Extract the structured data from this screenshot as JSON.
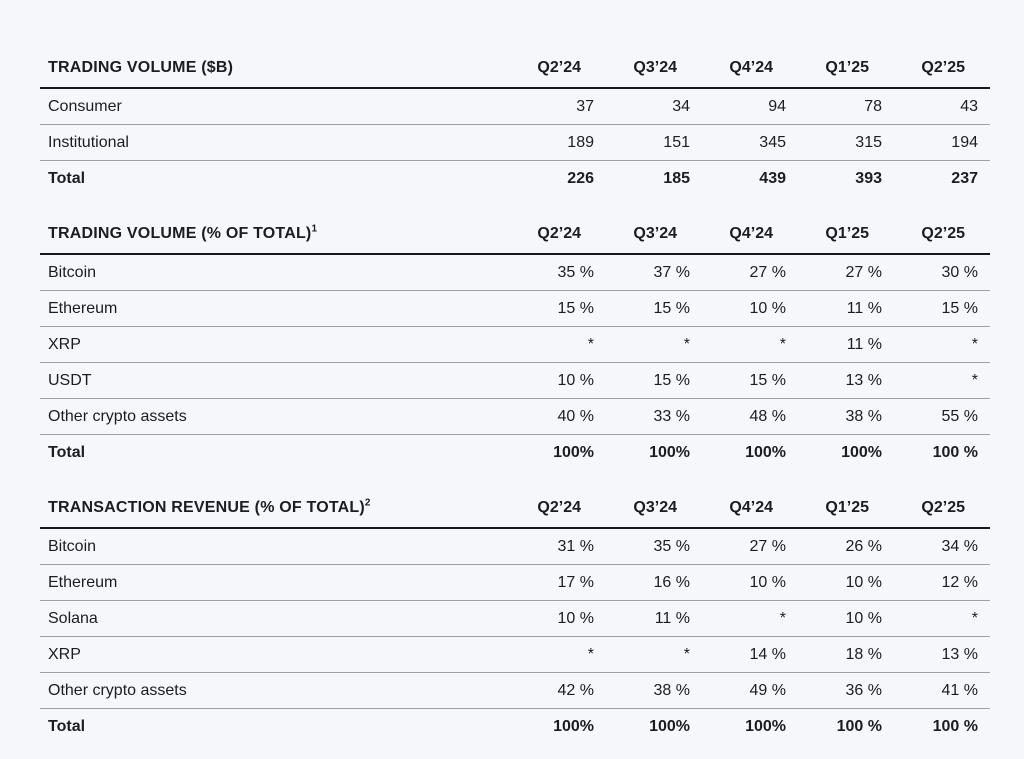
{
  "page": {
    "background_color": "#f5f7fa",
    "text_color": "#1b1d20",
    "header_rule_color": "#16181b",
    "row_rule_color": "#9aa0a7"
  },
  "tables": [
    {
      "id": "trading-volume-b",
      "title": "TRADING VOLUME ($B)",
      "superscript": "",
      "columns": [
        "Q2’24",
        "Q3’24",
        "Q4’24",
        "Q1’25",
        "Q2’25"
      ],
      "rows": [
        {
          "label": "Consumer",
          "bold": false,
          "values": [
            "37",
            "34",
            "94",
            "78",
            "43"
          ]
        },
        {
          "label": "Institutional",
          "bold": false,
          "values": [
            "189",
            "151",
            "345",
            "315",
            "194"
          ]
        },
        {
          "label": "Total",
          "bold": true,
          "values": [
            "226",
            "185",
            "439",
            "393",
            "237"
          ]
        }
      ]
    },
    {
      "id": "trading-volume-pct",
      "title": "TRADING VOLUME (% OF TOTAL)",
      "superscript": "1",
      "columns": [
        "Q2’24",
        "Q3’24",
        "Q4’24",
        "Q1’25",
        "Q2’25"
      ],
      "rows": [
        {
          "label": "Bitcoin",
          "bold": false,
          "values": [
            "35 %",
            "37 %",
            "27 %",
            "27 %",
            "30 %"
          ]
        },
        {
          "label": "Ethereum",
          "bold": false,
          "values": [
            "15 %",
            "15 %",
            "10 %",
            "11 %",
            "15 %"
          ]
        },
        {
          "label": "XRP",
          "bold": false,
          "values": [
            "*",
            "*",
            "*",
            "11 %",
            "*"
          ]
        },
        {
          "label": "USDT",
          "bold": false,
          "values": [
            "10 %",
            "15 %",
            "15 %",
            "13 %",
            "*"
          ]
        },
        {
          "label": "Other crypto assets",
          "bold": false,
          "values": [
            "40 %",
            "33 %",
            "48 %",
            "38 %",
            "55 %"
          ]
        },
        {
          "label": "Total",
          "bold": true,
          "values": [
            "100%",
            "100%",
            "100%",
            "100%",
            "100 %"
          ]
        }
      ]
    },
    {
      "id": "transaction-revenue-pct",
      "title": "TRANSACTION REVENUE (% OF TOTAL)",
      "superscript": "2",
      "columns": [
        "Q2’24",
        "Q3’24",
        "Q4’24",
        "Q1’25",
        "Q2’25"
      ],
      "rows": [
        {
          "label": "Bitcoin",
          "bold": false,
          "values": [
            "31 %",
            "35 %",
            "27 %",
            "26 %",
            "34 %"
          ]
        },
        {
          "label": "Ethereum",
          "bold": false,
          "values": [
            "17 %",
            "16 %",
            "10 %",
            "10 %",
            "12 %"
          ]
        },
        {
          "label": "Solana",
          "bold": false,
          "values": [
            "10 %",
            "11 %",
            "*",
            "10 %",
            "*"
          ]
        },
        {
          "label": "XRP",
          "bold": false,
          "values": [
            "*",
            "*",
            "14 %",
            "18 %",
            "13 %"
          ]
        },
        {
          "label": "Other crypto assets",
          "bold": false,
          "values": [
            "42 %",
            "38 %",
            "49 %",
            "36 %",
            "41 %"
          ]
        },
        {
          "label": "Total",
          "bold": true,
          "values": [
            "100%",
            "100%",
            "100%",
            "100 %",
            "100 %"
          ]
        }
      ]
    }
  ]
}
